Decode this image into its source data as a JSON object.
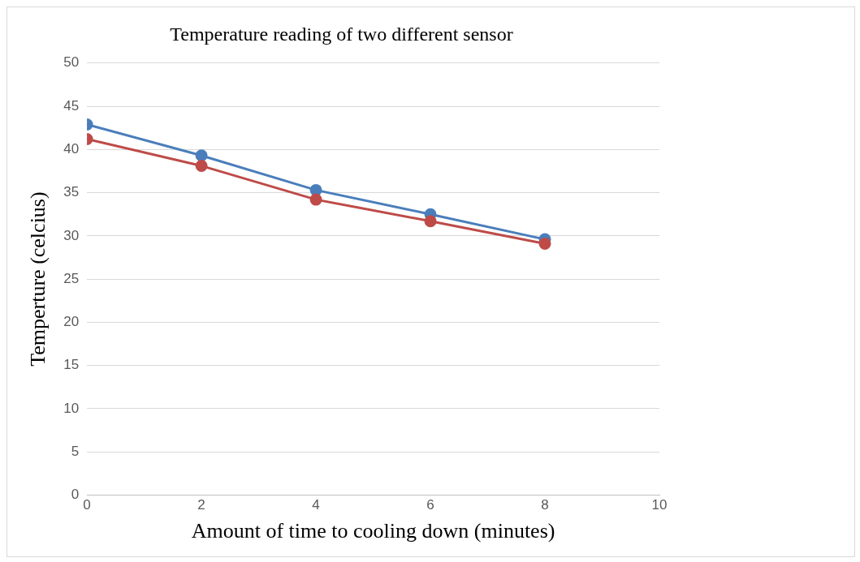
{
  "chart_data": {
    "type": "line",
    "title": "Temperature reading of two different sensor",
    "xlabel": "Amount of time to cooling down (minutes)",
    "ylabel": "Temperture (celcius)",
    "x": [
      0,
      2,
      4,
      6,
      8
    ],
    "xlim": [
      0,
      10
    ],
    "xticks": [
      0,
      2,
      4,
      6,
      8,
      10
    ],
    "ylim": [
      0,
      50
    ],
    "yticks": [
      0,
      5,
      10,
      15,
      20,
      25,
      30,
      35,
      40,
      45,
      50
    ],
    "grid": "y",
    "marker": "circle",
    "line_style": "solid",
    "series": [
      {
        "color": "#4a7ebb",
        "values": [
          42.9,
          39.3,
          35.3,
          32.5,
          29.6
        ]
      },
      {
        "color": "#be4b48",
        "values": [
          41.2,
          38.1,
          34.2,
          31.7,
          29.1
        ]
      }
    ]
  }
}
